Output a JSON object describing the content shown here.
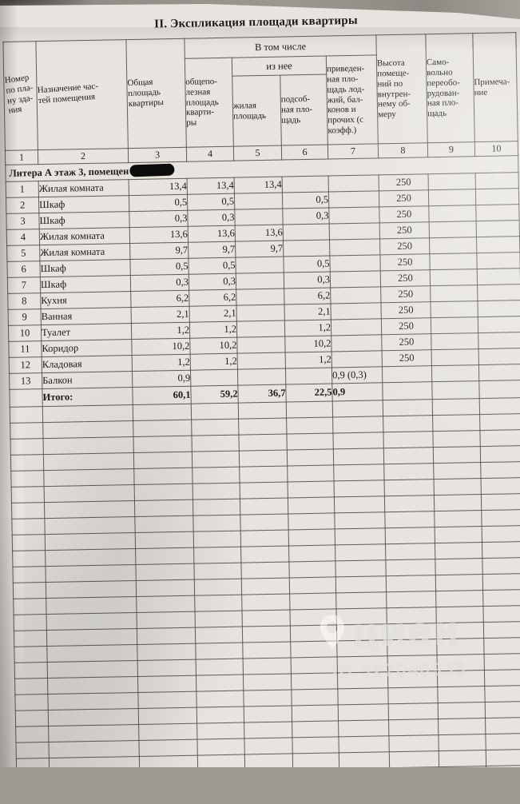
{
  "title": "II. Экспликация площади квартиры",
  "table": {
    "headers": {
      "col1": "Номер\nпо пла-\nну зда-\nния",
      "col2": "Назначение час-\nтей помещения",
      "col3": "Общая\nплощадь\nквартиры",
      "group_incl": "В том числе",
      "col4": "общепо-\nлезная\nплощадь\nкварти-\nры",
      "group_iznee": "из нее",
      "col5": "жилая\nплощадь",
      "col6": "подсоб-\nная пло-\nщадь",
      "col7": "приведен-\nная пло-\nщадь лод-\nжий, бал-\nконов и\nпрочих (с\nкоэфф.)",
      "col8": "Высота\nпомеще-\nний по\nвнутрен-\nнему об-\nмеру",
      "col9": "Само-\nвольно\nпереобо-\nрудован-\nная пло-\nщадь",
      "col10": "Примеча-\nние"
    },
    "col_numbers": [
      "1",
      "2",
      "3",
      "4",
      "5",
      "6",
      "7",
      "8",
      "9",
      "10"
    ],
    "section_label": "Литера А этаж 3, помещен",
    "rows": [
      {
        "num": "1",
        "name": "Жилая комната",
        "total": "13,4",
        "useful": "13,4",
        "living": "13,4",
        "aux": "",
        "reduced": "",
        "height": "250",
        "unauth": "",
        "note": ""
      },
      {
        "num": "2",
        "name": "Шкаф",
        "total": "0,5",
        "useful": "0,5",
        "living": "",
        "aux": "0,5",
        "reduced": "",
        "height": "250",
        "unauth": "",
        "note": ""
      },
      {
        "num": "3",
        "name": "Шкаф",
        "total": "0,3",
        "useful": "0,3",
        "living": "",
        "aux": "0,3",
        "reduced": "",
        "height": "250",
        "unauth": "",
        "note": ""
      },
      {
        "num": "4",
        "name": "Жилая комната",
        "total": "13,6",
        "useful": "13,6",
        "living": "13,6",
        "aux": "",
        "reduced": "",
        "height": "250",
        "unauth": "",
        "note": ""
      },
      {
        "num": "5",
        "name": "Жилая комната",
        "total": "9,7",
        "useful": "9,7",
        "living": "9,7",
        "aux": "",
        "reduced": "",
        "height": "250",
        "unauth": "",
        "note": ""
      },
      {
        "num": "6",
        "name": "Шкаф",
        "total": "0,5",
        "useful": "0,5",
        "living": "",
        "aux": "0,5",
        "reduced": "",
        "height": "250",
        "unauth": "",
        "note": ""
      },
      {
        "num": "7",
        "name": "Шкаф",
        "total": "0,3",
        "useful": "0,3",
        "living": "",
        "aux": "0,3",
        "reduced": "",
        "height": "250",
        "unauth": "",
        "note": ""
      },
      {
        "num": "8",
        "name": "Кухня",
        "total": "6,2",
        "useful": "6,2",
        "living": "",
        "aux": "6,2",
        "reduced": "",
        "height": "250",
        "unauth": "",
        "note": ""
      },
      {
        "num": "9",
        "name": "Ванная",
        "total": "2,1",
        "useful": "2,1",
        "living": "",
        "aux": "2,1",
        "reduced": "",
        "height": "250",
        "unauth": "",
        "note": ""
      },
      {
        "num": "10",
        "name": "Туалет",
        "total": "1,2",
        "useful": "1,2",
        "living": "",
        "aux": "1,2",
        "reduced": "",
        "height": "250",
        "unauth": "",
        "note": ""
      },
      {
        "num": "11",
        "name": "Коридор",
        "total": "10,2",
        "useful": "10,2",
        "living": "",
        "aux": "10,2",
        "reduced": "",
        "height": "250",
        "unauth": "",
        "note": ""
      },
      {
        "num": "12",
        "name": "Кладовая",
        "total": "1,2",
        "useful": "1,2",
        "living": "",
        "aux": "1,2",
        "reduced": "",
        "height": "250",
        "unauth": "",
        "note": ""
      },
      {
        "num": "13",
        "name": "Балкон",
        "total": "0,9",
        "useful": "",
        "living": "",
        "aux": "",
        "reduced": "0,9  (0,3)",
        "height": "",
        "unauth": "",
        "note": ""
      }
    ],
    "total_row": {
      "num": "",
      "name": "Итого:",
      "total": "60,1",
      "useful": "59,2",
      "living": "36,7",
      "aux": "22,5",
      "reduced": "0,9",
      "height": "",
      "unauth": "",
      "note": ""
    },
    "empty_row_count": 24
  },
  "watermark": {
    "brand": "циан",
    "id_text": "ID 327040935"
  }
}
